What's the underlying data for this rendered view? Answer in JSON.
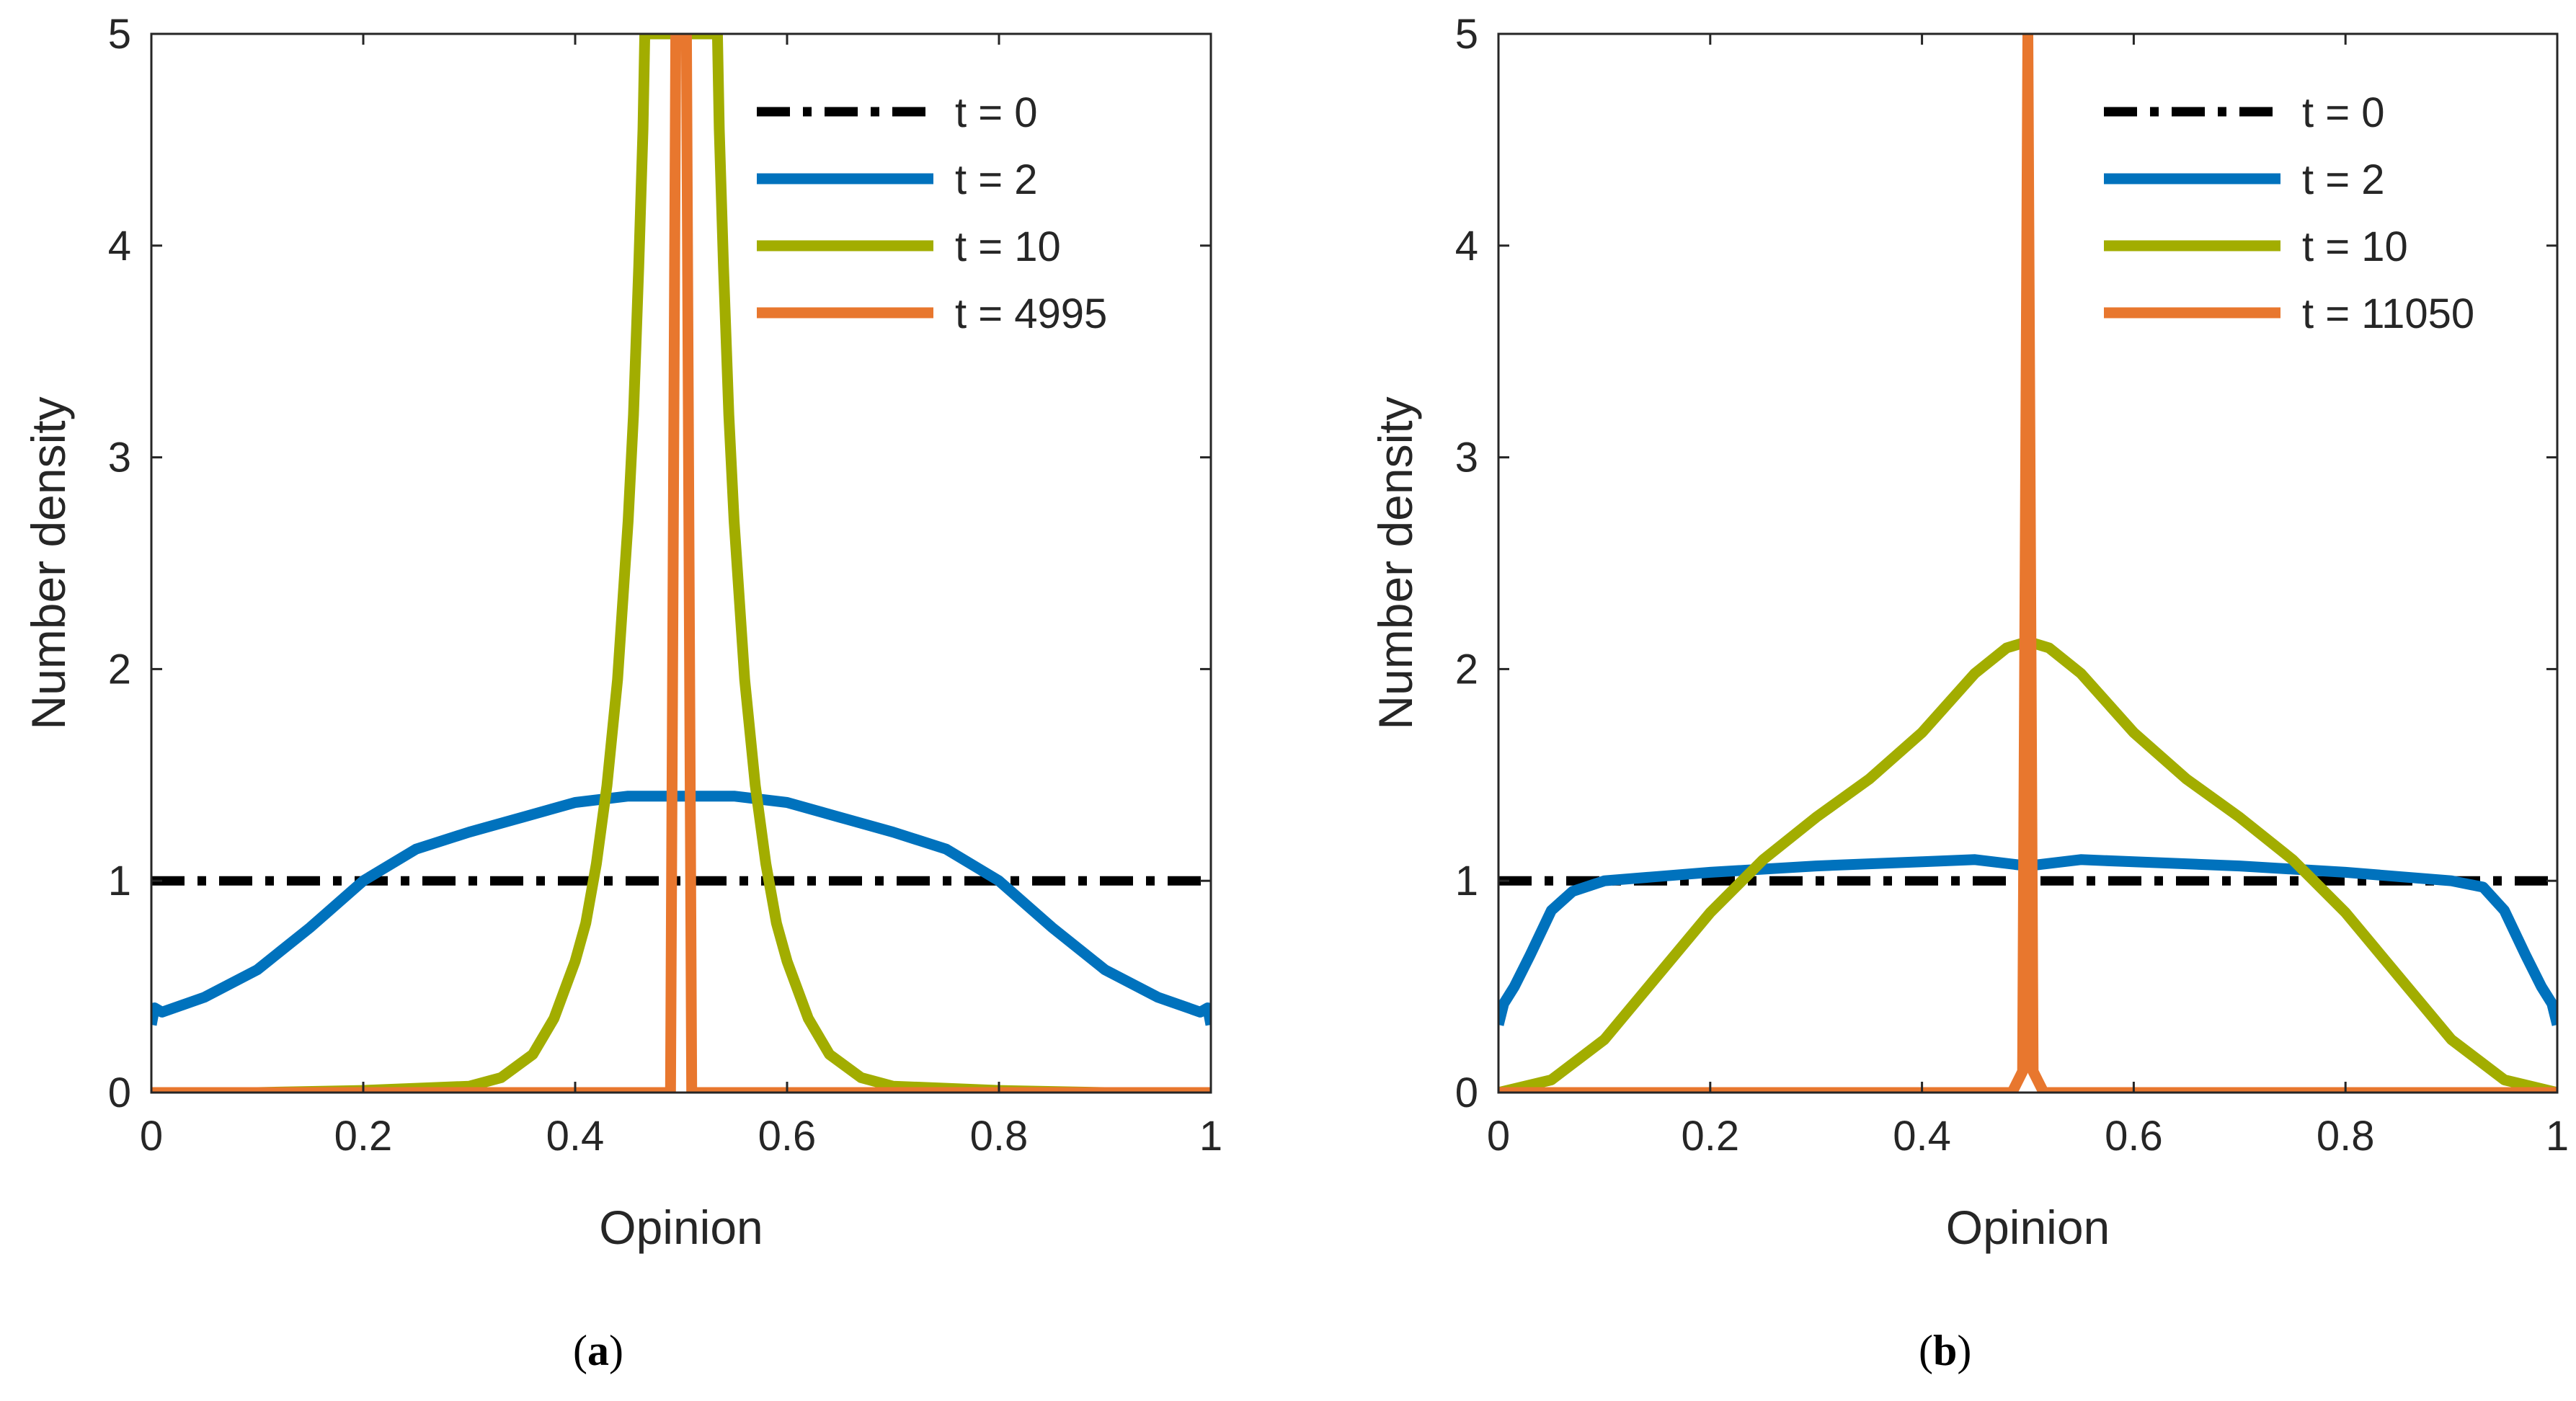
{
  "chart_data": [
    {
      "type": "line",
      "panel_label": "a",
      "title": "",
      "xlabel": "Opinion",
      "ylabel": "Number density",
      "xlim": [
        0,
        1
      ],
      "ylim": [
        0,
        5
      ],
      "xticks": [
        0,
        0.2,
        0.4,
        0.6,
        0.8,
        1
      ],
      "xtick_labels": [
        "0",
        "0.2",
        "0.4",
        "0.6",
        "0.8",
        "1"
      ],
      "yticks": [
        0,
        1,
        2,
        3,
        4,
        5
      ],
      "ytick_labels": [
        "0",
        "1",
        "2",
        "3",
        "4",
        "5"
      ],
      "grid": false,
      "legend_position": "top-right",
      "series": [
        {
          "name": "t = 0",
          "color": "#000000",
          "style": "dashdot",
          "x": [
            0,
            1
          ],
          "y": [
            1,
            1
          ]
        },
        {
          "name": "t = 2",
          "color": "#0072BD",
          "style": "solid",
          "x": [
            0,
            0.003,
            0.01,
            0.05,
            0.1,
            0.15,
            0.2,
            0.25,
            0.3,
            0.35,
            0.4,
            0.45,
            0.5,
            0.55,
            0.6,
            0.65,
            0.7,
            0.75,
            0.8,
            0.85,
            0.9,
            0.95,
            0.99,
            0.997,
            1
          ],
          "y": [
            0.32,
            0.4,
            0.38,
            0.45,
            0.58,
            0.78,
            1.0,
            1.15,
            1.23,
            1.3,
            1.37,
            1.4,
            1.4,
            1.4,
            1.37,
            1.3,
            1.23,
            1.15,
            1.0,
            0.78,
            0.58,
            0.45,
            0.38,
            0.4,
            0.32
          ]
        },
        {
          "name": "t = 10",
          "color": "#A2AD00",
          "style": "solid",
          "x": [
            0,
            0.1,
            0.2,
            0.25,
            0.3,
            0.33,
            0.36,
            0.38,
            0.4,
            0.41,
            0.42,
            0.43,
            0.44,
            0.45,
            0.455,
            0.46,
            0.464,
            0.4657,
            0.5343,
            0.536,
            0.54,
            0.545,
            0.55,
            0.56,
            0.57,
            0.58,
            0.59,
            0.6,
            0.62,
            0.64,
            0.67,
            0.7,
            0.75,
            0.8,
            0.9,
            1
          ],
          "y": [
            0,
            0,
            0.01,
            0.02,
            0.03,
            0.07,
            0.18,
            0.35,
            0.62,
            0.8,
            1.08,
            1.45,
            1.95,
            2.7,
            3.2,
            3.9,
            4.55,
            5.0,
            5.0,
            4.55,
            3.9,
            3.2,
            2.7,
            1.95,
            1.45,
            1.08,
            0.8,
            0.62,
            0.35,
            0.18,
            0.07,
            0.03,
            0.02,
            0.01,
            0,
            0
          ]
        },
        {
          "name": "t = 4995",
          "color": "#E8772E",
          "style": "solid",
          "x": [
            0,
            0.49,
            0.495,
            0.505,
            0.51,
            1
          ],
          "y": [
            0,
            0,
            5.0,
            5.0,
            0,
            0
          ]
        }
      ]
    },
    {
      "type": "line",
      "panel_label": "b",
      "title": "",
      "xlabel": "Opinion",
      "ylabel": "Number density",
      "xlim": [
        0,
        1
      ],
      "ylim": [
        0,
        5
      ],
      "xticks": [
        0,
        0.2,
        0.4,
        0.6,
        0.8,
        1
      ],
      "xtick_labels": [
        "0",
        "0.2",
        "0.4",
        "0.6",
        "0.8",
        "1"
      ],
      "yticks": [
        0,
        1,
        2,
        3,
        4,
        5
      ],
      "ytick_labels": [
        "0",
        "1",
        "2",
        "3",
        "4",
        "5"
      ],
      "grid": false,
      "legend_position": "top-right",
      "series": [
        {
          "name": "t = 0",
          "color": "#000000",
          "style": "dashdot",
          "x": [
            0,
            1
          ],
          "y": [
            1,
            1
          ]
        },
        {
          "name": "t = 2",
          "color": "#0072BD",
          "style": "solid",
          "x": [
            0,
            0.005,
            0.015,
            0.03,
            0.05,
            0.07,
            0.1,
            0.15,
            0.2,
            0.3,
            0.4,
            0.45,
            0.5,
            0.55,
            0.6,
            0.7,
            0.8,
            0.85,
            0.9,
            0.93,
            0.95,
            0.97,
            0.985,
            0.995,
            1
          ],
          "y": [
            0.32,
            0.42,
            0.5,
            0.65,
            0.86,
            0.95,
            1.0,
            1.02,
            1.04,
            1.07,
            1.09,
            1.1,
            1.07,
            1.1,
            1.09,
            1.07,
            1.04,
            1.02,
            1.0,
            0.97,
            0.86,
            0.65,
            0.5,
            0.42,
            0.32
          ]
        },
        {
          "name": "t = 10",
          "color": "#A2AD00",
          "style": "solid",
          "x": [
            0,
            0.05,
            0.1,
            0.15,
            0.2,
            0.25,
            0.3,
            0.35,
            0.4,
            0.45,
            0.48,
            0.5,
            0.52,
            0.55,
            0.6,
            0.65,
            0.7,
            0.75,
            0.8,
            0.85,
            0.9,
            0.95,
            1
          ],
          "y": [
            0,
            0.06,
            0.25,
            0.55,
            0.85,
            1.1,
            1.3,
            1.48,
            1.7,
            1.98,
            2.1,
            2.13,
            2.1,
            1.98,
            1.7,
            1.48,
            1.3,
            1.1,
            0.85,
            0.55,
            0.25,
            0.06,
            0
          ]
        },
        {
          "name": "t = 11050",
          "color": "#E8772E",
          "style": "solid",
          "x": [
            0,
            0.485,
            0.495,
            0.5,
            0.505,
            0.515,
            1
          ],
          "y": [
            0,
            0,
            0.1,
            5.0,
            0.1,
            0,
            0
          ]
        }
      ]
    }
  ]
}
